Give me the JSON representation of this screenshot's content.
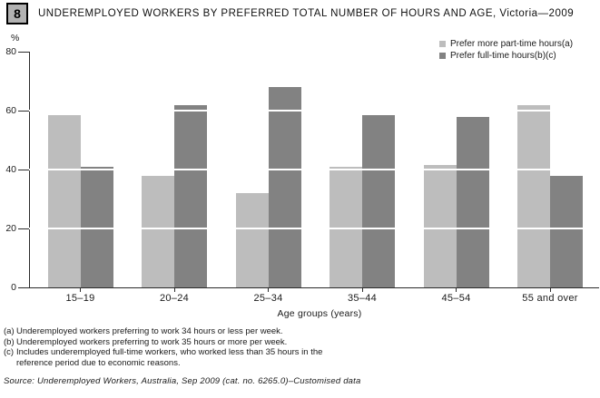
{
  "figure": {
    "number": "8",
    "title": "UNDEREMPLOYED WORKERS BY PREFERRED TOTAL NUMBER OF HOURS AND AGE, Victoria—2009"
  },
  "chart_data": {
    "type": "bar",
    "title": "UNDEREMPLOYED WORKERS BY PREFERRED TOTAL NUMBER OF HOURS AND AGE, Victoria—2009",
    "categories": [
      "15–19",
      "20–24",
      "25–34",
      "35–44",
      "45–54",
      "55 and over"
    ],
    "series": [
      {
        "name": "Prefer more part-time hours(a)",
        "color": "#bdbdbd",
        "values": [
          58.5,
          38,
          32,
          41,
          41.5,
          62
        ]
      },
      {
        "name": "Prefer full-time hours(b)(c)",
        "color": "#828282",
        "values": [
          41,
          62,
          68,
          58.5,
          58,
          38
        ]
      }
    ],
    "xlabel": "Age groups (years)",
    "ylabel": "%",
    "ylim": [
      0,
      80
    ],
    "yticks": [
      0,
      20,
      40,
      60,
      80
    ],
    "gridlines": [
      20,
      40,
      60
    ],
    "grid_color": "#ffffff",
    "legend_position": "top-right",
    "grid": "white lines over bars only"
  },
  "footnotes": [
    {
      "marker": "(a)",
      "text": "Underemployed workers preferring to work 34 hours or less per week."
    },
    {
      "marker": "(b)",
      "text": "Underemployed workers preferring to work 35 hours or more per week."
    },
    {
      "marker": "(c)",
      "text": "Includes underemployed full-time workers, who worked less than 35 hours in the\nreference period due to economic reasons."
    }
  ],
  "source": "Source: Underemployed Workers, Australia, Sep 2009 (cat. no. 6265.0)–Customised data"
}
